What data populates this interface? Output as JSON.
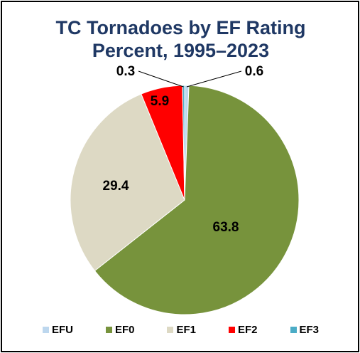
{
  "chart_data": {
    "type": "pie",
    "title": "TC Tornadoes by EF Rating",
    "subtitle": "Percent, 1995–2023",
    "slices": [
      {
        "name": "EFU",
        "value": 0.6,
        "label": "0.6",
        "color": "#bdd7ee"
      },
      {
        "name": "EF0",
        "value": 63.8,
        "label": "63.8",
        "color": "#77933c"
      },
      {
        "name": "EF1",
        "value": 29.4,
        "label": "29.4",
        "color": "#ddd9c4"
      },
      {
        "name": "EF2",
        "value": 5.9,
        "label": "5.9",
        "color": "#ff0000"
      },
      {
        "name": "EF3",
        "value": 0.3,
        "label": "0.3",
        "color": "#4bacc6"
      }
    ],
    "legend_position": "bottom",
    "start": "top",
    "direction": "clockwise"
  }
}
